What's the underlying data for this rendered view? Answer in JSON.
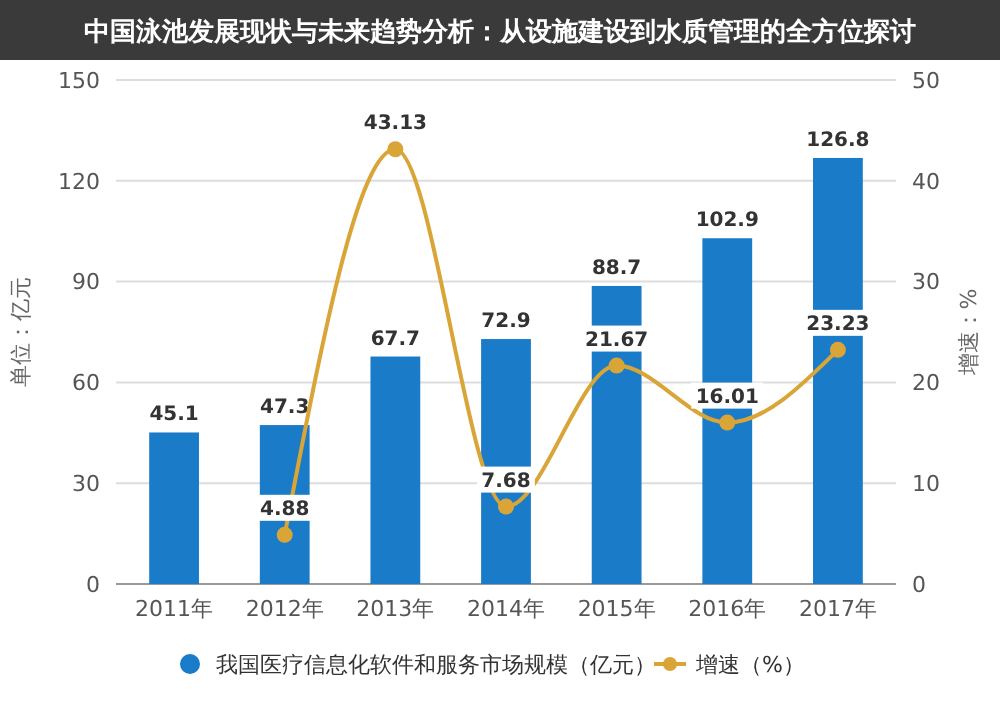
{
  "chart_data": {
    "type": "bar",
    "title": "中国泳池发展现状与未来趋势分析：从设施建设到水质管理的全方位探讨",
    "categories": [
      "2011年",
      "2012年",
      "2013年",
      "2014年",
      "2015年",
      "2016年",
      "2017年"
    ],
    "series": [
      {
        "name": "我国医疗信息化软件和服务市场规模（亿元）",
        "color": "#1a7bc9",
        "values": [
          45.1,
          47.3,
          67.7,
          72.9,
          88.7,
          102.9,
          126.8
        ]
      },
      {
        "name": "增速（%）",
        "type": "line",
        "axis": "y2",
        "color": "#d9a537",
        "values": [
          null,
          4.88,
          43.13,
          7.68,
          21.67,
          16.01,
          23.23
        ]
      }
    ],
    "ylabel": "单位：亿元",
    "y2label": "增速：%",
    "ylim": [
      0,
      150
    ],
    "yticks": [
      0,
      30,
      60,
      90,
      120,
      150
    ],
    "y2lim": [
      0,
      50
    ],
    "y2ticks": [
      0,
      10,
      20,
      30,
      40,
      50
    ],
    "grid": "y",
    "legend": "bottom",
    "marker": "circle",
    "data_labels": true
  }
}
